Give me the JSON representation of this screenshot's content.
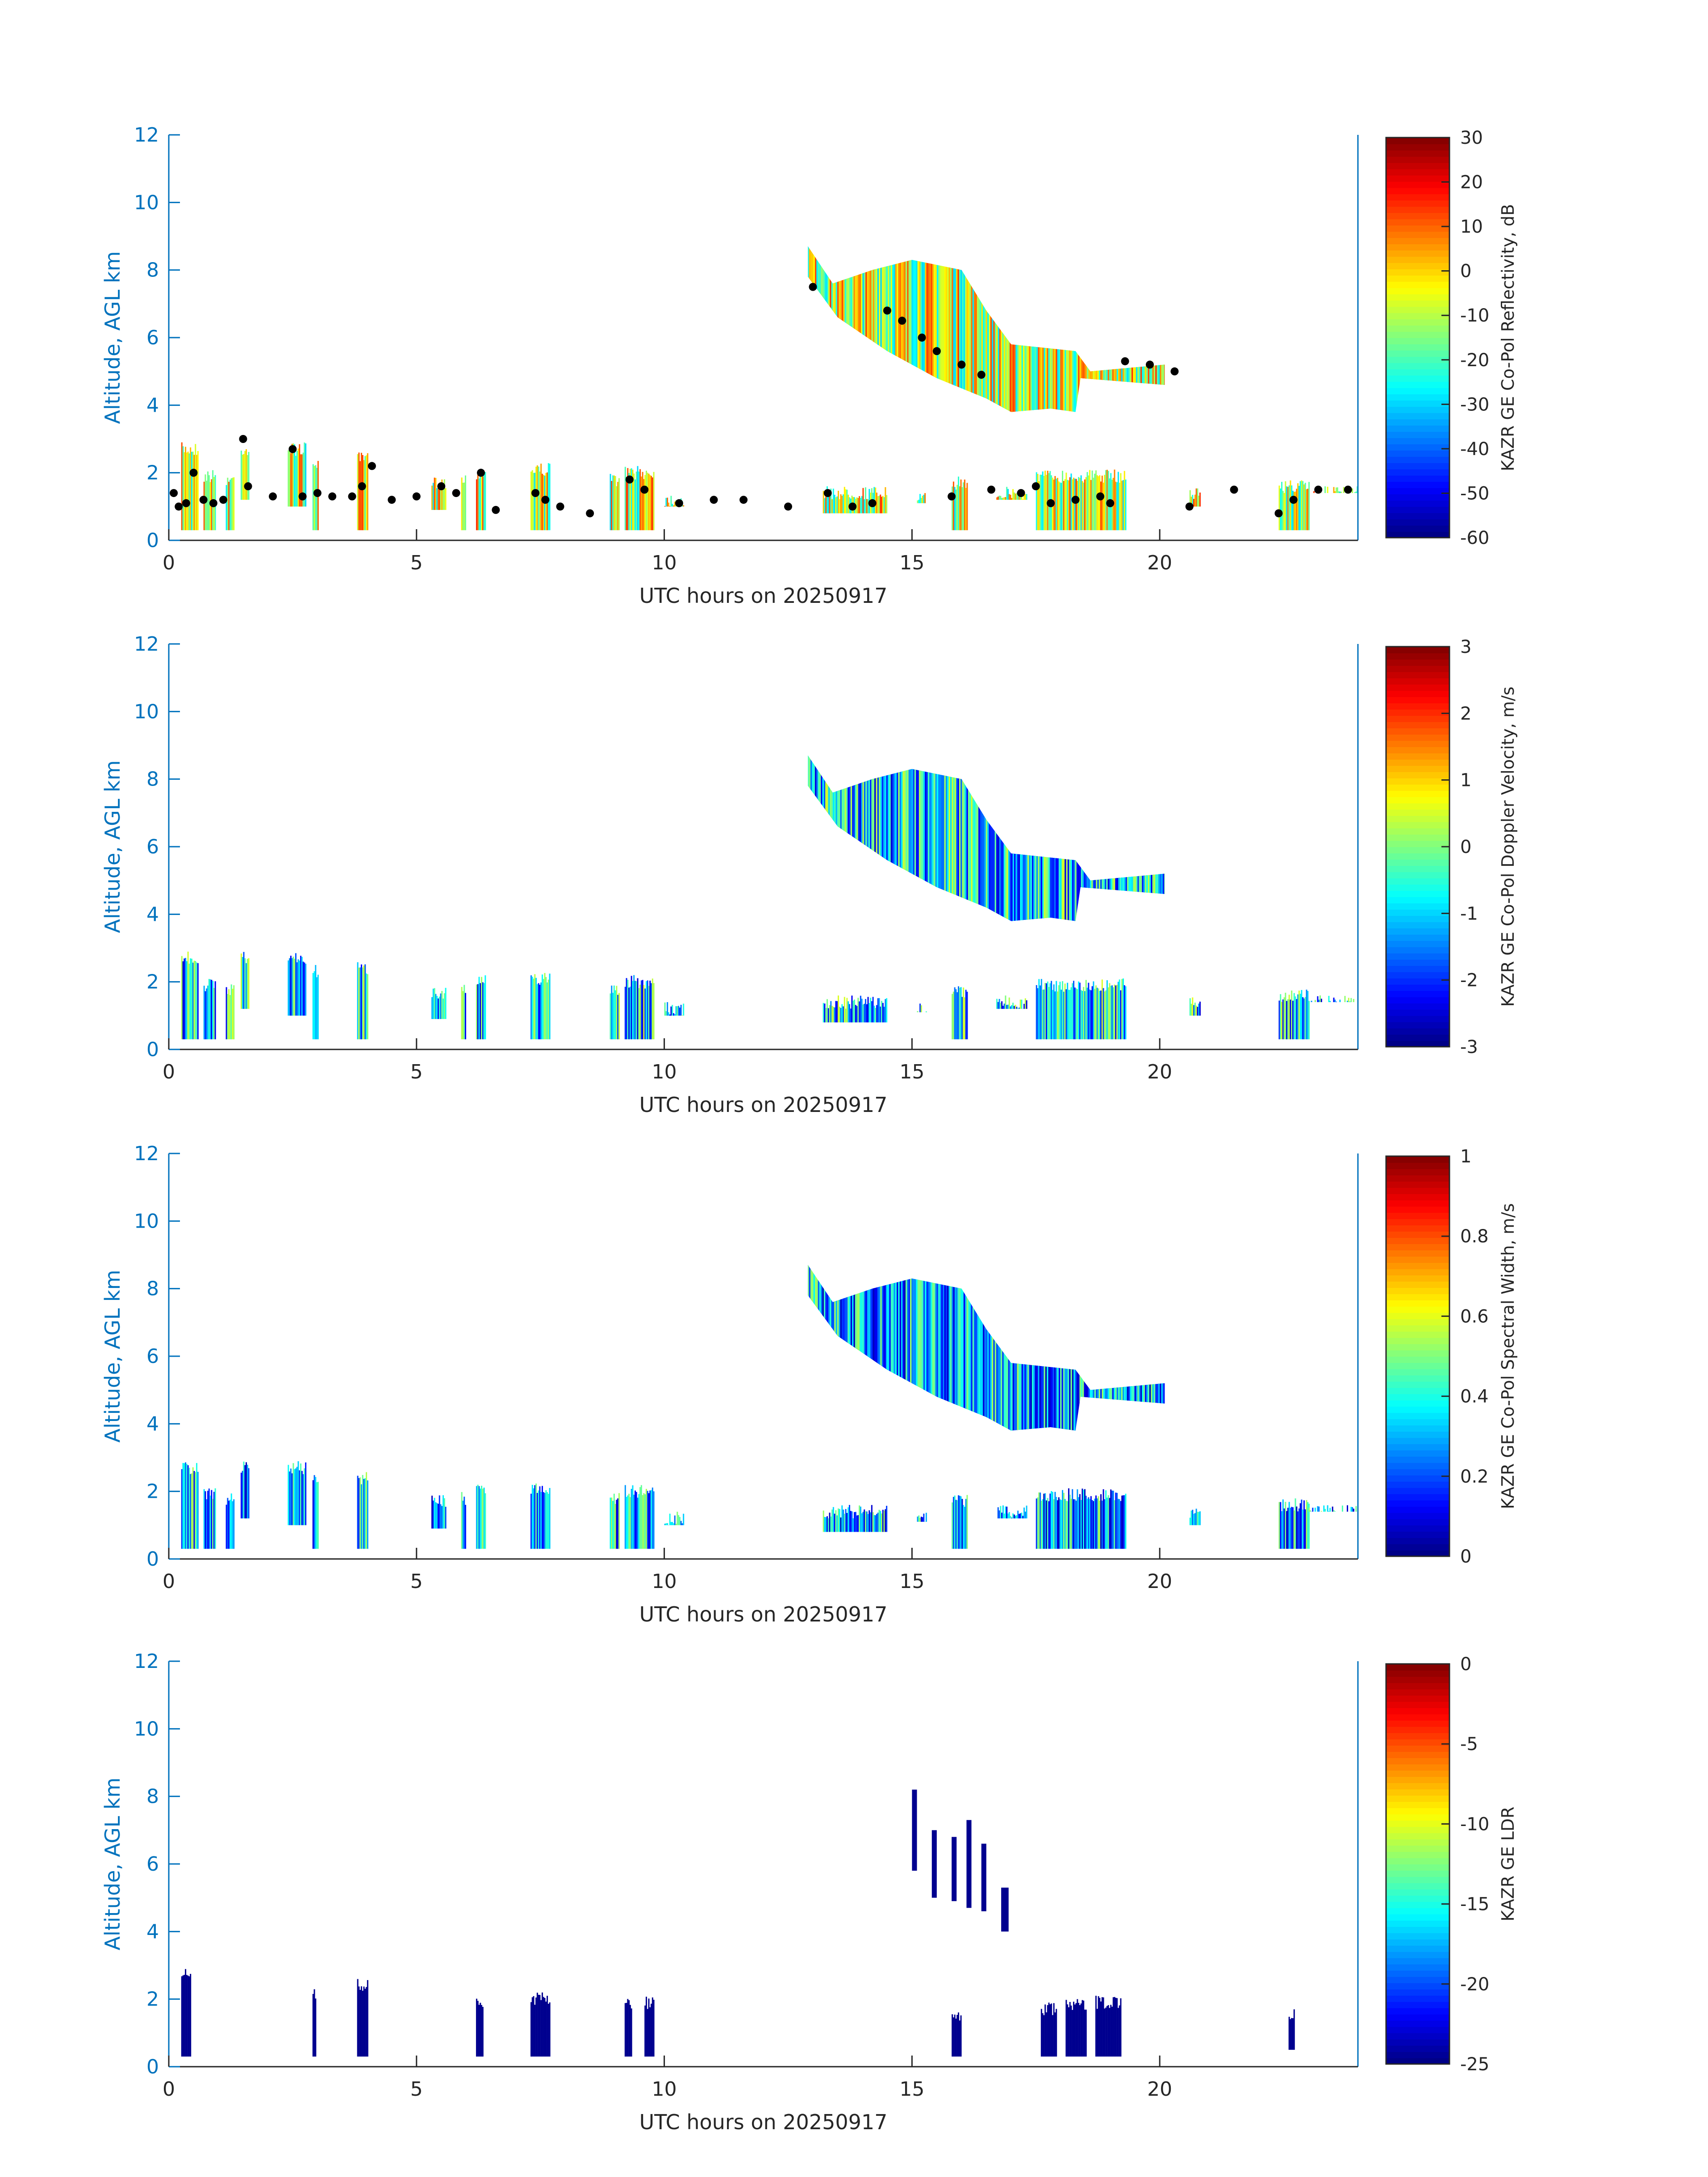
{
  "chart_data": [
    {
      "type": "heatmap",
      "xlabel": "UTC hours on 20250917",
      "ylabel": "Altitude, AGL km",
      "xlim": [
        0,
        24
      ],
      "ylim": [
        0,
        12
      ],
      "xticks": [
        "0",
        "5",
        "10",
        "15",
        "20"
      ],
      "yticks": [
        "0",
        "2",
        "4",
        "6",
        "8",
        "10",
        "12"
      ],
      "colorbar": {
        "label": "KAZR GE Co-Pol Reflectivity, dB",
        "range": [
          -60,
          30
        ],
        "ticks": [
          "-60",
          "-50",
          "-40",
          "-30",
          "-20",
          "-10",
          "0",
          "10",
          "20",
          "30"
        ],
        "colormap": "jet"
      },
      "echo_value_range": [
        -30,
        15
      ],
      "overlay": "cloud-base points (black)",
      "cloud_base_points": [
        [
          0.1,
          1.4
        ],
        [
          0.2,
          1.0
        ],
        [
          0.35,
          1.1
        ],
        [
          0.5,
          2.0
        ],
        [
          0.7,
          1.2
        ],
        [
          0.9,
          1.1
        ],
        [
          1.1,
          1.2
        ],
        [
          1.5,
          3.0
        ],
        [
          1.6,
          1.6
        ],
        [
          2.1,
          1.3
        ],
        [
          2.5,
          2.7
        ],
        [
          2.7,
          1.3
        ],
        [
          3.0,
          1.4
        ],
        [
          3.3,
          1.3
        ],
        [
          3.7,
          1.3
        ],
        [
          3.9,
          1.6
        ],
        [
          4.1,
          2.2
        ],
        [
          4.5,
          1.2
        ],
        [
          5.0,
          1.3
        ],
        [
          5.5,
          1.6
        ],
        [
          5.8,
          1.4
        ],
        [
          6.3,
          2.0
        ],
        [
          6.6,
          0.9
        ],
        [
          7.4,
          1.4
        ],
        [
          7.6,
          1.2
        ],
        [
          7.9,
          1.0
        ],
        [
          8.5,
          0.8
        ],
        [
          9.3,
          1.8
        ],
        [
          9.6,
          1.5
        ],
        [
          10.3,
          1.1
        ],
        [
          11.0,
          1.2
        ],
        [
          11.6,
          1.2
        ],
        [
          12.5,
          1.0
        ],
        [
          13.0,
          7.5
        ],
        [
          13.3,
          1.4
        ],
        [
          13.8,
          1.0
        ],
        [
          14.2,
          1.1
        ],
        [
          14.5,
          6.8
        ],
        [
          14.8,
          6.5
        ],
        [
          15.2,
          6.0
        ],
        [
          15.5,
          5.6
        ],
        [
          15.8,
          1.3
        ],
        [
          16.0,
          5.2
        ],
        [
          16.4,
          4.9
        ],
        [
          16.6,
          1.5
        ],
        [
          17.2,
          1.4
        ],
        [
          17.5,
          1.6
        ],
        [
          17.8,
          1.1
        ],
        [
          18.3,
          1.2
        ],
        [
          18.8,
          1.3
        ],
        [
          19.0,
          1.1
        ],
        [
          19.3,
          5.3
        ],
        [
          19.8,
          5.2
        ],
        [
          20.3,
          5.0
        ],
        [
          20.6,
          1.0
        ],
        [
          21.5,
          1.5
        ],
        [
          22.4,
          0.8
        ],
        [
          22.7,
          1.2
        ],
        [
          23.2,
          1.5
        ],
        [
          23.8,
          1.5
        ]
      ]
    },
    {
      "type": "heatmap",
      "xlabel": "UTC hours on 20250917",
      "ylabel": "Altitude, AGL km",
      "xlim": [
        0,
        24
      ],
      "ylim": [
        0,
        12
      ],
      "xticks": [
        "0",
        "5",
        "10",
        "15",
        "20"
      ],
      "yticks": [
        "0",
        "2",
        "4",
        "6",
        "8",
        "10",
        "12"
      ],
      "colorbar": {
        "label": "KAZR GE Co-Pol Doppler Velocity, m/s",
        "range": [
          -3,
          3
        ],
        "ticks": [
          "-3",
          "-2",
          "-1",
          "0",
          "1",
          "2",
          "3"
        ],
        "colormap": "jet"
      },
      "echo_value_range": [
        -2.5,
        0.6
      ]
    },
    {
      "type": "heatmap",
      "xlabel": "UTC hours on 20250917",
      "ylabel": "Altitude, AGL km",
      "xlim": [
        0,
        24
      ],
      "ylim": [
        0,
        12
      ],
      "xticks": [
        "0",
        "5",
        "10",
        "15",
        "20"
      ],
      "yticks": [
        "0",
        "2",
        "4",
        "6",
        "8",
        "10",
        "12"
      ],
      "colorbar": {
        "label": "KAZR GE Co-Pol Spectral Width, m/s",
        "range": [
          0,
          1
        ],
        "ticks": [
          "0",
          "0.2",
          "0.4",
          "0.6",
          "0.8",
          "1"
        ],
        "colormap": "jet"
      },
      "echo_value_range": [
        0.05,
        0.55
      ]
    },
    {
      "type": "heatmap",
      "xlabel": "UTC hours on 20250917",
      "ylabel": "Altitude, AGL km",
      "xlim": [
        0,
        24
      ],
      "ylim": [
        0,
        12
      ],
      "xticks": [
        "0",
        "5",
        "10",
        "15",
        "20"
      ],
      "yticks": [
        "0",
        "2",
        "4",
        "6",
        "8",
        "10",
        "12"
      ],
      "colorbar": {
        "label": "KAZR GE LDR",
        "range": [
          -25,
          0
        ],
        "ticks": [
          "-25",
          "-20",
          "-15",
          "-10",
          "-5",
          "0"
        ],
        "colormap": "jet"
      },
      "echo_value_range": [
        -25,
        -22
      ],
      "ldr_only": true
    }
  ],
  "echo_features": {
    "upper_cloud_outline": [
      [
        12.9,
        8.7
      ],
      [
        13.4,
        7.6
      ],
      [
        14.2,
        8.0
      ],
      [
        15.0,
        8.3
      ],
      [
        16.0,
        8.0
      ],
      [
        16.5,
        6.8
      ],
      [
        17.0,
        5.8
      ],
      [
        18.3,
        5.6
      ],
      [
        18.6,
        5.0
      ],
      [
        20.1,
        5.2
      ],
      [
        20.1,
        4.6
      ],
      [
        18.4,
        4.8
      ],
      [
        18.3,
        3.8
      ],
      [
        17.8,
        3.9
      ],
      [
        17.0,
        3.8
      ],
      [
        16.5,
        4.2
      ],
      [
        15.5,
        4.8
      ],
      [
        14.5,
        5.6
      ],
      [
        13.5,
        6.6
      ],
      [
        12.9,
        7.8
      ]
    ],
    "low_columns": [
      [
        0.25,
        0.6,
        0.3,
        2.9
      ],
      [
        0.7,
        0.95,
        0.3,
        2.1
      ],
      [
        1.15,
        1.3,
        0.3,
        2.0
      ],
      [
        1.45,
        1.6,
        1.2,
        2.9
      ],
      [
        2.4,
        2.75,
        1.0,
        2.9
      ],
      [
        2.9,
        3.0,
        0.3,
        2.5
      ],
      [
        3.8,
        4.0,
        0.3,
        2.6
      ],
      [
        5.3,
        5.6,
        0.9,
        1.9
      ],
      [
        5.9,
        6.0,
        0.3,
        2.0
      ],
      [
        6.2,
        6.4,
        0.3,
        2.2
      ],
      [
        7.3,
        7.7,
        0.3,
        2.3
      ],
      [
        8.9,
        9.1,
        0.3,
        2.0
      ],
      [
        9.2,
        9.8,
        0.3,
        2.2
      ],
      [
        10.0,
        10.4,
        1.0,
        1.4
      ],
      [
        13.2,
        14.5,
        0.8,
        1.6
      ],
      [
        15.1,
        15.3,
        1.1,
        1.4
      ],
      [
        15.8,
        16.1,
        0.3,
        1.9
      ],
      [
        16.7,
        17.3,
        1.2,
        1.6
      ],
      [
        17.5,
        19.3,
        0.3,
        2.1
      ],
      [
        20.6,
        20.8,
        1.0,
        1.6
      ],
      [
        22.4,
        23.0,
        0.3,
        1.8
      ],
      [
        23.0,
        24.0,
        1.4,
        1.6
      ]
    ],
    "ldr_columns": [
      [
        0.25,
        0.45,
        0.3,
        2.9
      ],
      [
        2.9,
        2.95,
        0.3,
        2.4
      ],
      [
        3.8,
        4.0,
        0.3,
        2.6
      ],
      [
        6.2,
        6.35,
        0.3,
        2.1
      ],
      [
        7.3,
        7.7,
        0.3,
        2.2
      ],
      [
        9.2,
        9.35,
        0.3,
        2.1
      ],
      [
        9.6,
        9.8,
        0.3,
        2.1
      ],
      [
        15.8,
        16.0,
        0.3,
        1.7
      ],
      [
        17.6,
        17.9,
        0.3,
        1.9
      ],
      [
        18.1,
        18.5,
        0.3,
        2.0
      ],
      [
        18.7,
        19.2,
        0.3,
        2.1
      ],
      [
        22.6,
        22.7,
        0.5,
        1.8
      ]
    ],
    "ldr_upper_streaks": [
      [
        15.0,
        15.1,
        5.8,
        8.2
      ],
      [
        15.4,
        15.5,
        5.0,
        7.0
      ],
      [
        15.8,
        15.9,
        4.9,
        6.8
      ],
      [
        16.1,
        16.2,
        4.7,
        7.3
      ],
      [
        16.4,
        16.5,
        4.6,
        6.6
      ],
      [
        16.8,
        16.95,
        4.0,
        5.3
      ]
    ]
  }
}
